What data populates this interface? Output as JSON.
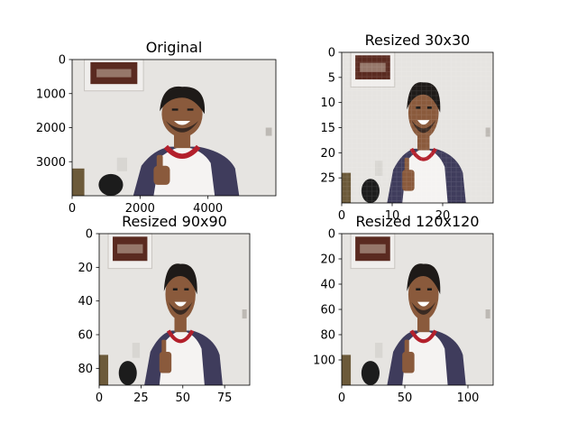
{
  "chart_data": [
    {
      "type": "image",
      "title": "Original",
      "image_size": [
        6000,
        4000
      ],
      "x_ticks": [
        0,
        2000,
        4000
      ],
      "y_ticks": [
        0,
        1000,
        2000,
        3000
      ]
    },
    {
      "type": "image",
      "title": "Resized 30x30",
      "image_size": [
        30,
        30
      ],
      "x_ticks": [
        0,
        10,
        20
      ],
      "y_ticks": [
        0,
        5,
        10,
        15,
        20,
        25
      ]
    },
    {
      "type": "image",
      "title": "Resized 90x90",
      "image_size": [
        90,
        90
      ],
      "x_ticks": [
        0,
        25,
        50,
        75
      ],
      "y_ticks": [
        0,
        20,
        40,
        60,
        80
      ]
    },
    {
      "type": "image",
      "title": "Resized 120x120",
      "image_size": [
        120,
        120
      ],
      "x_ticks": [
        0,
        50,
        100
      ],
      "y_ticks": [
        0,
        20,
        40,
        60,
        80,
        100
      ]
    }
  ],
  "photo": {
    "wall_color": "#e6e4e1",
    "skin_color": "#8a5a3c",
    "hair_color": "#1e1a18",
    "shirt_sleeve_color": "#3f3c5c",
    "shirt_body_color": "#f5f3f2",
    "collar_color": "#b3202c",
    "frame_color": "#f0eeec",
    "painting_color": "#5a2a20"
  }
}
